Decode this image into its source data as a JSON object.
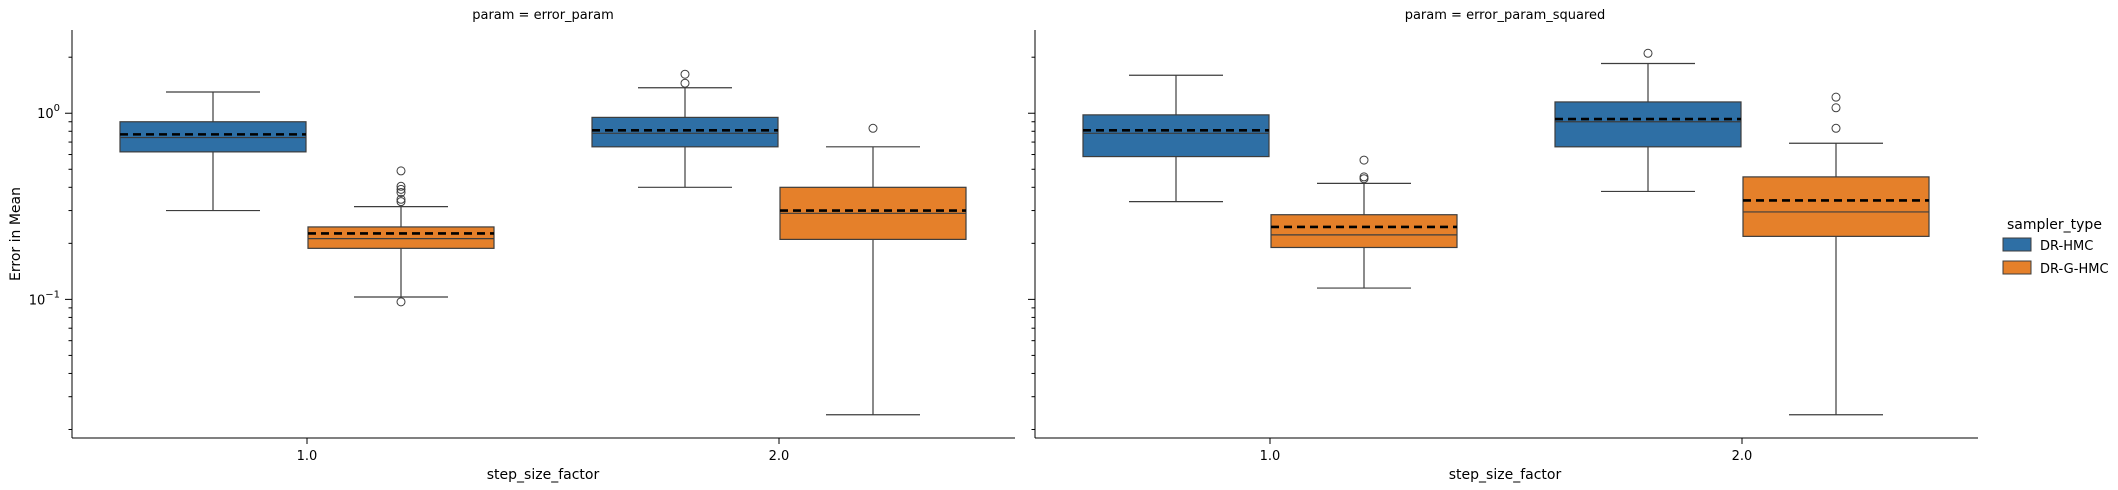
{
  "chart_data": {
    "type": "box",
    "y_scale": "log",
    "ylim": [
      0.018,
      2.8
    ],
    "ylabel": "Error in Mean",
    "xlabel": "step_size_factor",
    "categories": [
      "1.0",
      "2.0"
    ],
    "y_ticks": [
      {
        "value": 0.1,
        "base": "10",
        "exp": "−1"
      },
      {
        "value": 1.0,
        "base": "10",
        "exp": "0"
      }
    ],
    "legend": {
      "title": "sampler_type",
      "placement": "right",
      "entries": [
        {
          "name": "DR-HMC",
          "color": "#2e6fa5"
        },
        {
          "name": "DR-G-HMC",
          "color": "#e5802a"
        }
      ]
    },
    "panels": [
      {
        "title": "param = error_param",
        "boxes": [
          {
            "category": "1.0",
            "series": "DR-HMC",
            "whislo": 0.3,
            "q1": 0.62,
            "med": 0.74,
            "q3": 0.9,
            "whishi": 1.3,
            "mean": 0.77,
            "fliers": []
          },
          {
            "category": "1.0",
            "series": "DR-G-HMC",
            "whislo": 0.103,
            "q1": 0.188,
            "med": 0.212,
            "q3": 0.245,
            "whishi": 0.315,
            "mean": 0.226,
            "fliers": [
              0.097,
              0.335,
              0.345,
              0.375,
              0.39,
              0.405,
              0.49
            ]
          },
          {
            "category": "2.0",
            "series": "DR-HMC",
            "whislo": 0.4,
            "q1": 0.66,
            "med": 0.78,
            "q3": 0.95,
            "whishi": 1.37,
            "mean": 0.81,
            "fliers": [
              1.45,
              1.62
            ]
          },
          {
            "category": "2.0",
            "series": "DR-G-HMC",
            "whislo": 0.024,
            "q1": 0.21,
            "med": 0.29,
            "q3": 0.4,
            "whishi": 0.66,
            "mean": 0.3,
            "fliers": [
              0.83
            ]
          }
        ]
      },
      {
        "title": "param = error_param_squared",
        "boxes": [
          {
            "category": "1.0",
            "series": "DR-HMC",
            "whislo": 0.335,
            "q1": 0.585,
            "med": 0.78,
            "q3": 0.98,
            "whishi": 1.6,
            "mean": 0.81,
            "fliers": []
          },
          {
            "category": "1.0",
            "series": "DR-G-HMC",
            "whislo": 0.115,
            "q1": 0.19,
            "med": 0.222,
            "q3": 0.285,
            "whishi": 0.42,
            "mean": 0.245,
            "fliers": [
              0.445,
              0.455,
              0.56
            ]
          },
          {
            "category": "2.0",
            "series": "DR-HMC",
            "whislo": 0.38,
            "q1": 0.66,
            "med": 0.9,
            "q3": 1.15,
            "whishi": 1.85,
            "mean": 0.93,
            "fliers": [
              2.1
            ]
          },
          {
            "category": "2.0",
            "series": "DR-G-HMC",
            "whislo": 0.024,
            "q1": 0.218,
            "med": 0.295,
            "q3": 0.455,
            "whishi": 0.69,
            "mean": 0.34,
            "fliers": [
              0.83,
              1.07,
              1.22
            ]
          }
        ]
      }
    ]
  }
}
